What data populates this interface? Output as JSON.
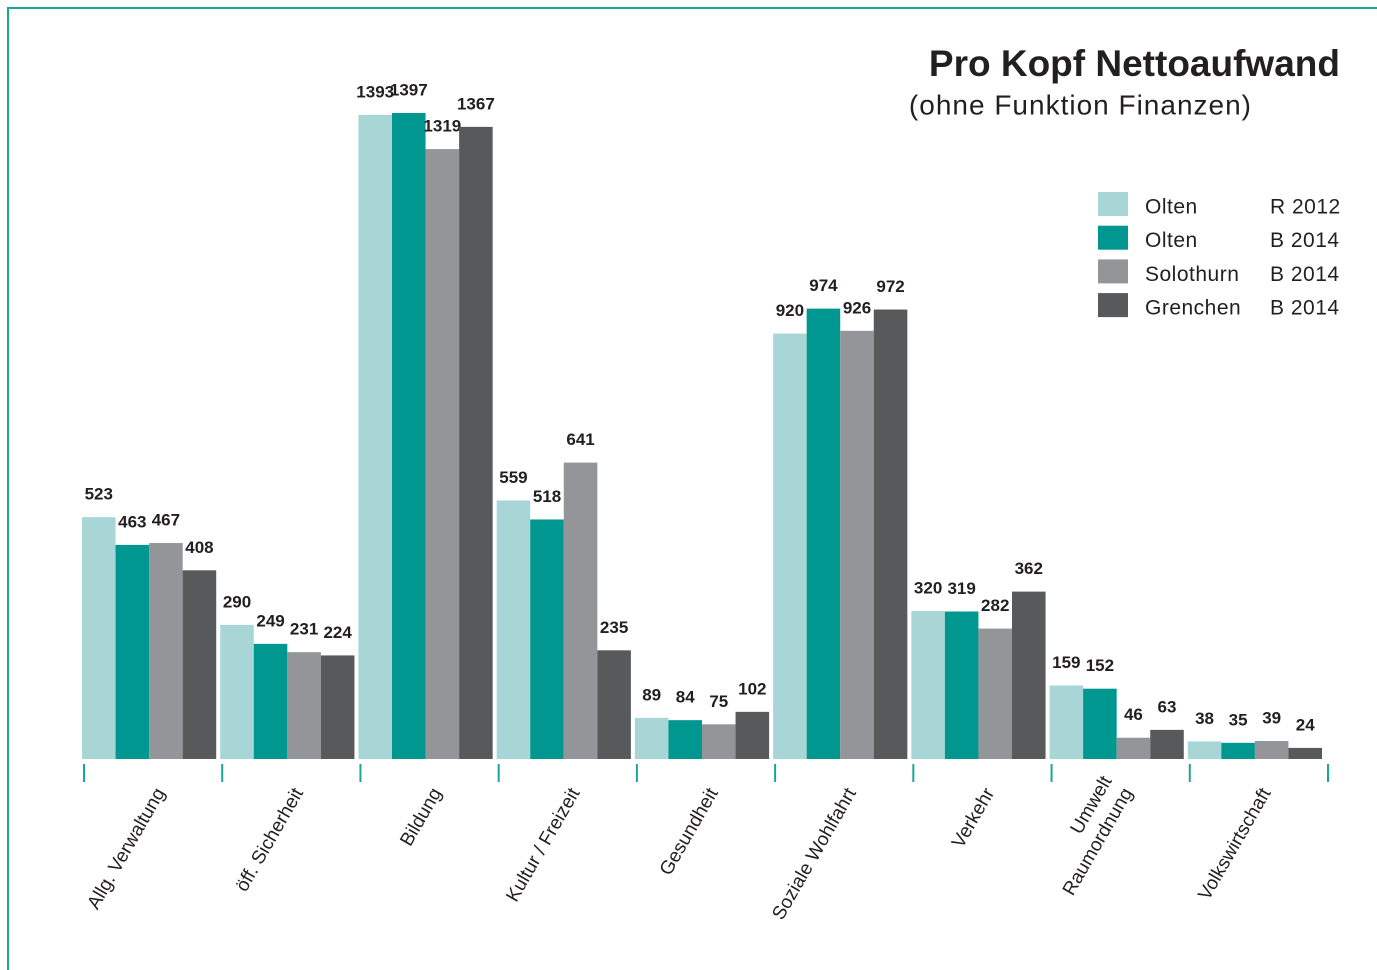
{
  "chart_data": {
    "type": "bar",
    "title": "Pro Kopf Nettoaufwand",
    "subtitle": "(ohne Funktion Finanzen)",
    "categories": [
      "Allg. Verwaltung",
      "öff. Sicherheit",
      "Bildung",
      "Kultur / Freizeit",
      "Gesundheit",
      "Soziale Wohlfahrt",
      "Verkehr",
      "Umwelt\nRaumordnung",
      "Volkswirtschaft"
    ],
    "series": [
      {
        "name": "Olten",
        "edition": "R 2012",
        "color": "#a8d5d5",
        "values": [
          523,
          290,
          1393,
          559,
          89,
          920,
          320,
          159,
          38
        ]
      },
      {
        "name": "Olten",
        "edition": "B 2014",
        "color": "#009790",
        "values": [
          463,
          249,
          1397,
          518,
          84,
          974,
          319,
          152,
          35
        ]
      },
      {
        "name": "Solothurn",
        "edition": "B 2014",
        "color": "#939598",
        "values": [
          467,
          231,
          1319,
          641,
          75,
          926,
          282,
          46,
          39
        ]
      },
      {
        "name": "Grenchen",
        "edition": "B 2014",
        "color": "#58595b",
        "values": [
          408,
          224,
          1367,
          235,
          102,
          972,
          362,
          63,
          24
        ]
      }
    ]
  }
}
